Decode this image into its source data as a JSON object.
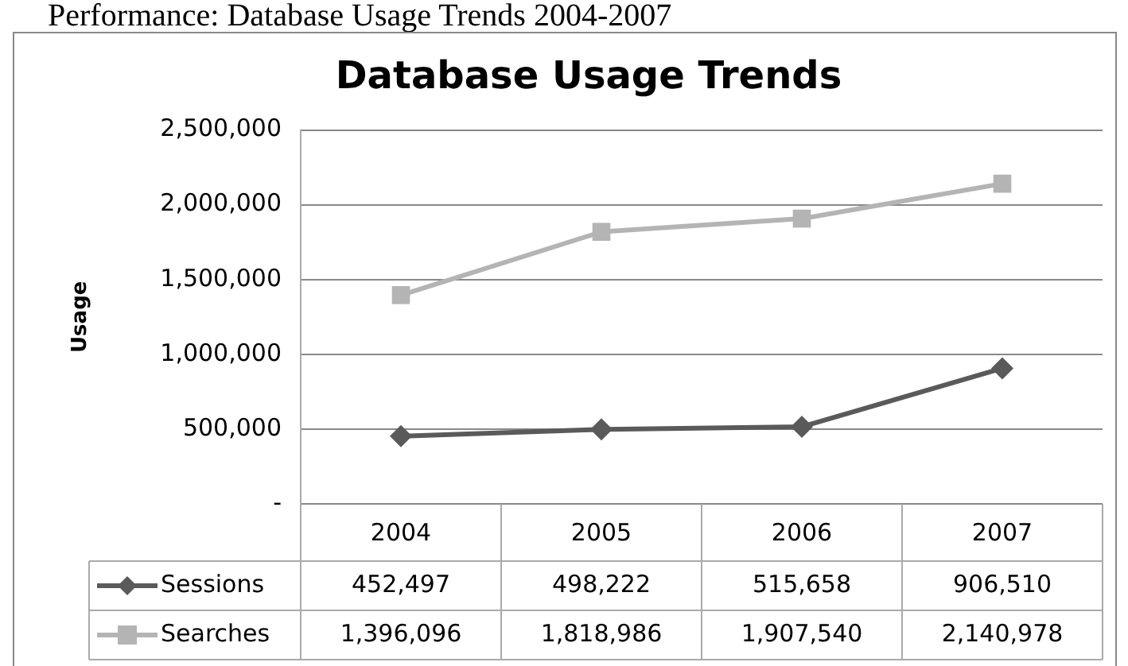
{
  "chart_data": {
    "type": "line",
    "title": "Database Usage Trends",
    "annotations": [
      "Performance: Database Usage Trends 2004-2007"
    ],
    "ylabel": "Usage",
    "categories": [
      "2004",
      "2005",
      "2006",
      "2007"
    ],
    "series": [
      {
        "name": "Sessions",
        "color": "#5a5a5a",
        "marker": "diamond",
        "values": [
          452497,
          498222,
          515658,
          906510
        ],
        "value_labels": [
          "452,497",
          "498,222",
          "515,658",
          "906,510"
        ]
      },
      {
        "name": "Searches",
        "color": "#b4b4b4",
        "marker": "square",
        "values": [
          1396096,
          1818986,
          1907540,
          2140978
        ],
        "value_labels": [
          "1,396,096",
          "1,818,986",
          "1,907,540",
          "2,140,978"
        ]
      }
    ],
    "ylim": [
      0,
      2500000
    ],
    "yticks": [
      {
        "value": 0,
        "label": "-"
      },
      {
        "value": 500000,
        "label": "500,000"
      },
      {
        "value": 1000000,
        "label": "1,000,000"
      },
      {
        "value": 1500000,
        "label": "1,500,000"
      },
      {
        "value": 2000000,
        "label": "2,000,000"
      },
      {
        "value": 2500000,
        "label": "2,500,000"
      }
    ],
    "grid": "y",
    "legend": "bottom"
  }
}
